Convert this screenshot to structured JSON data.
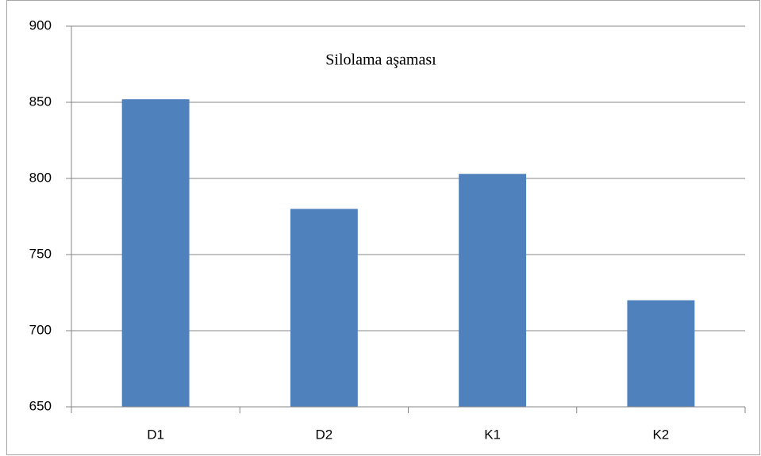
{
  "chart_data": {
    "type": "bar",
    "title": "Silolama aşaması",
    "categories": [
      "D1",
      "D2",
      "K1",
      "K2"
    ],
    "values": [
      852,
      780,
      803,
      720
    ],
    "color": "#4f81bd",
    "ylim": [
      650,
      900
    ],
    "yticks": [
      650,
      700,
      750,
      800,
      850,
      900
    ],
    "grid": true
  }
}
